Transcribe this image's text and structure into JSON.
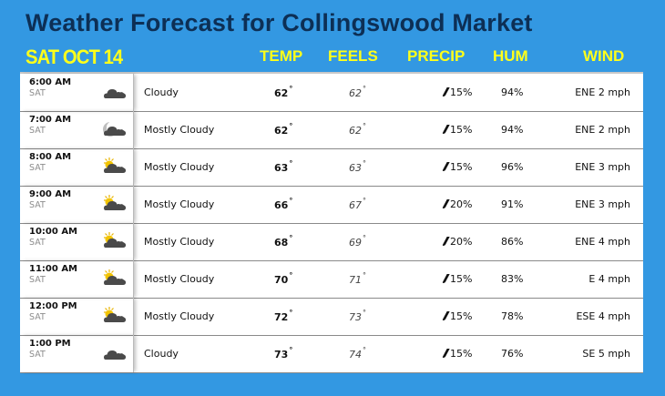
{
  "title": "Weather Forecast for Collingswood Market",
  "date_label": "SAT OCT 14",
  "columns": {
    "temp": "TEMP",
    "feels": "FEELS",
    "precip": "PRECIP",
    "hum": "HUM",
    "wind": "WIND"
  },
  "colors": {
    "background": "#3398e2",
    "title": "#0d2f55",
    "header": "#ffff1a"
  },
  "rows": [
    {
      "time": "6:00 AM",
      "day": "SAT",
      "icon": "cloudy-icon",
      "condition": "Cloudy",
      "temp": "62",
      "feels": "62",
      "precip": "15%",
      "hum": "94%",
      "wind": "ENE 2 mph"
    },
    {
      "time": "7:00 AM",
      "day": "SAT",
      "icon": "mostly-cloudy-night-icon",
      "condition": "Mostly Cloudy",
      "temp": "62",
      "feels": "62",
      "precip": "15%",
      "hum": "94%",
      "wind": "ENE 2 mph"
    },
    {
      "time": "8:00 AM",
      "day": "SAT",
      "icon": "mostly-cloudy-day-icon",
      "condition": "Mostly Cloudy",
      "temp": "63",
      "feels": "63",
      "precip": "15%",
      "hum": "96%",
      "wind": "ENE 3 mph"
    },
    {
      "time": "9:00 AM",
      "day": "SAT",
      "icon": "mostly-cloudy-day-icon",
      "condition": "Mostly Cloudy",
      "temp": "66",
      "feels": "67",
      "precip": "20%",
      "hum": "91%",
      "wind": "ENE 3 mph"
    },
    {
      "time": "10:00 AM",
      "day": "SAT",
      "icon": "mostly-cloudy-day-icon",
      "condition": "Mostly Cloudy",
      "temp": "68",
      "feels": "69",
      "precip": "20%",
      "hum": "86%",
      "wind": "ENE 4 mph"
    },
    {
      "time": "11:00 AM",
      "day": "SAT",
      "icon": "mostly-cloudy-day-icon",
      "condition": "Mostly Cloudy",
      "temp": "70",
      "feels": "71",
      "precip": "15%",
      "hum": "83%",
      "wind": "E 4 mph"
    },
    {
      "time": "12:00 PM",
      "day": "SAT",
      "icon": "mostly-cloudy-day-icon",
      "condition": "Mostly Cloudy",
      "temp": "72",
      "feels": "73",
      "precip": "15%",
      "hum": "78%",
      "wind": "ESE 4 mph"
    },
    {
      "time": "1:00 PM",
      "day": "SAT",
      "icon": "cloudy-icon",
      "condition": "Cloudy",
      "temp": "73",
      "feels": "74",
      "precip": "15%",
      "hum": "76%",
      "wind": "SE 5 mph"
    }
  ],
  "degree_symbol": "°"
}
